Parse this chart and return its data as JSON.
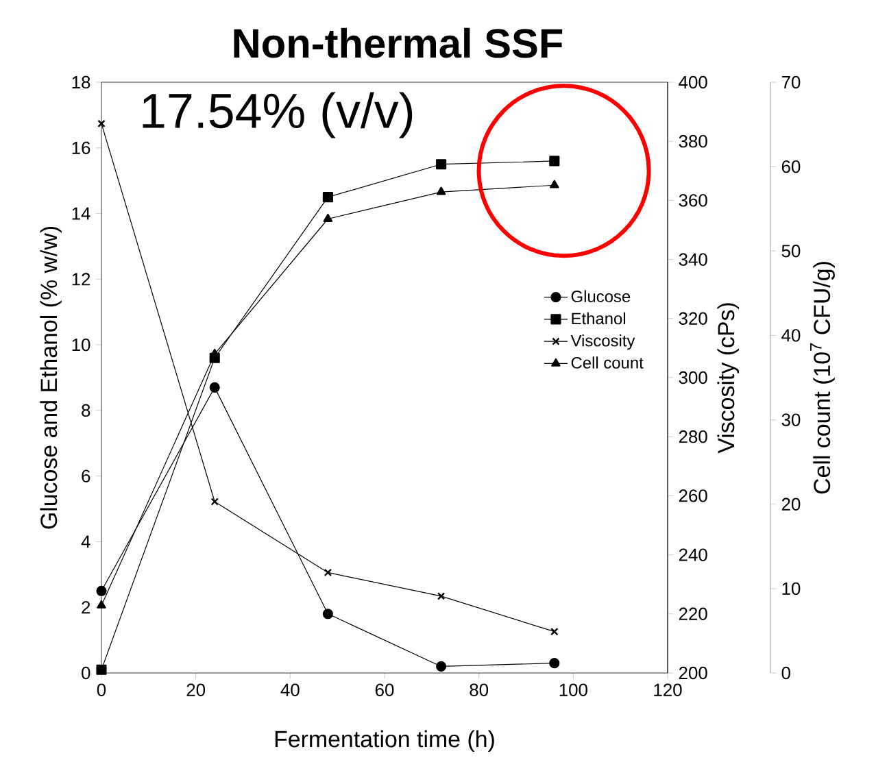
{
  "chart_data": {
    "type": "line",
    "title": "Non-thermal SSF",
    "annotations": [
      "17.54% (v/v)"
    ],
    "xlabel": "Fermentation time (h)",
    "ylabel": "Glucose and Ethanol (% w/w)",
    "y2label": "Viscosity (cPs)",
    "y3label": "Cell count (10$^{7}$ CFU/g)",
    "x": [
      0,
      24,
      48,
      72,
      96
    ],
    "xlim": [
      0,
      120
    ],
    "xticks": [
      0,
      20,
      40,
      60,
      80,
      100,
      120
    ],
    "ylim": [
      0,
      18
    ],
    "yticks": [
      0,
      2,
      4,
      6,
      8,
      10,
      12,
      14,
      16,
      18
    ],
    "y2lim": [
      200,
      400
    ],
    "y2ticks": [
      200,
      220,
      240,
      260,
      280,
      300,
      320,
      340,
      360,
      380,
      400
    ],
    "y3lim": [
      0,
      70
    ],
    "y3ticks": [
      0,
      10,
      20,
      30,
      40,
      50,
      60,
      70
    ],
    "legend": "right",
    "grid": false,
    "line_style": "solid",
    "series": [
      {
        "name": "Glucose",
        "color": "#000000",
        "marker": "circle",
        "values": [
          2.5,
          8.7,
          1.8,
          0.2,
          0.3
        ]
      },
      {
        "name": "Ethanol",
        "color": "#000000",
        "marker": "square",
        "values": [
          0.1,
          9.6,
          14.5,
          15.5,
          15.6
        ]
      },
      {
        "name": "Viscosity",
        "color": "#000000",
        "marker": "cross",
        "axis": "y2",
        "values": [
          386,
          258,
          234,
          226,
          214
        ]
      },
      {
        "name": "Cell count",
        "color": "#000000",
        "marker": "triangle",
        "axis": "y3",
        "values": [
          8,
          37.8,
          53.8,
          57,
          57.8
        ]
      }
    ]
  }
}
